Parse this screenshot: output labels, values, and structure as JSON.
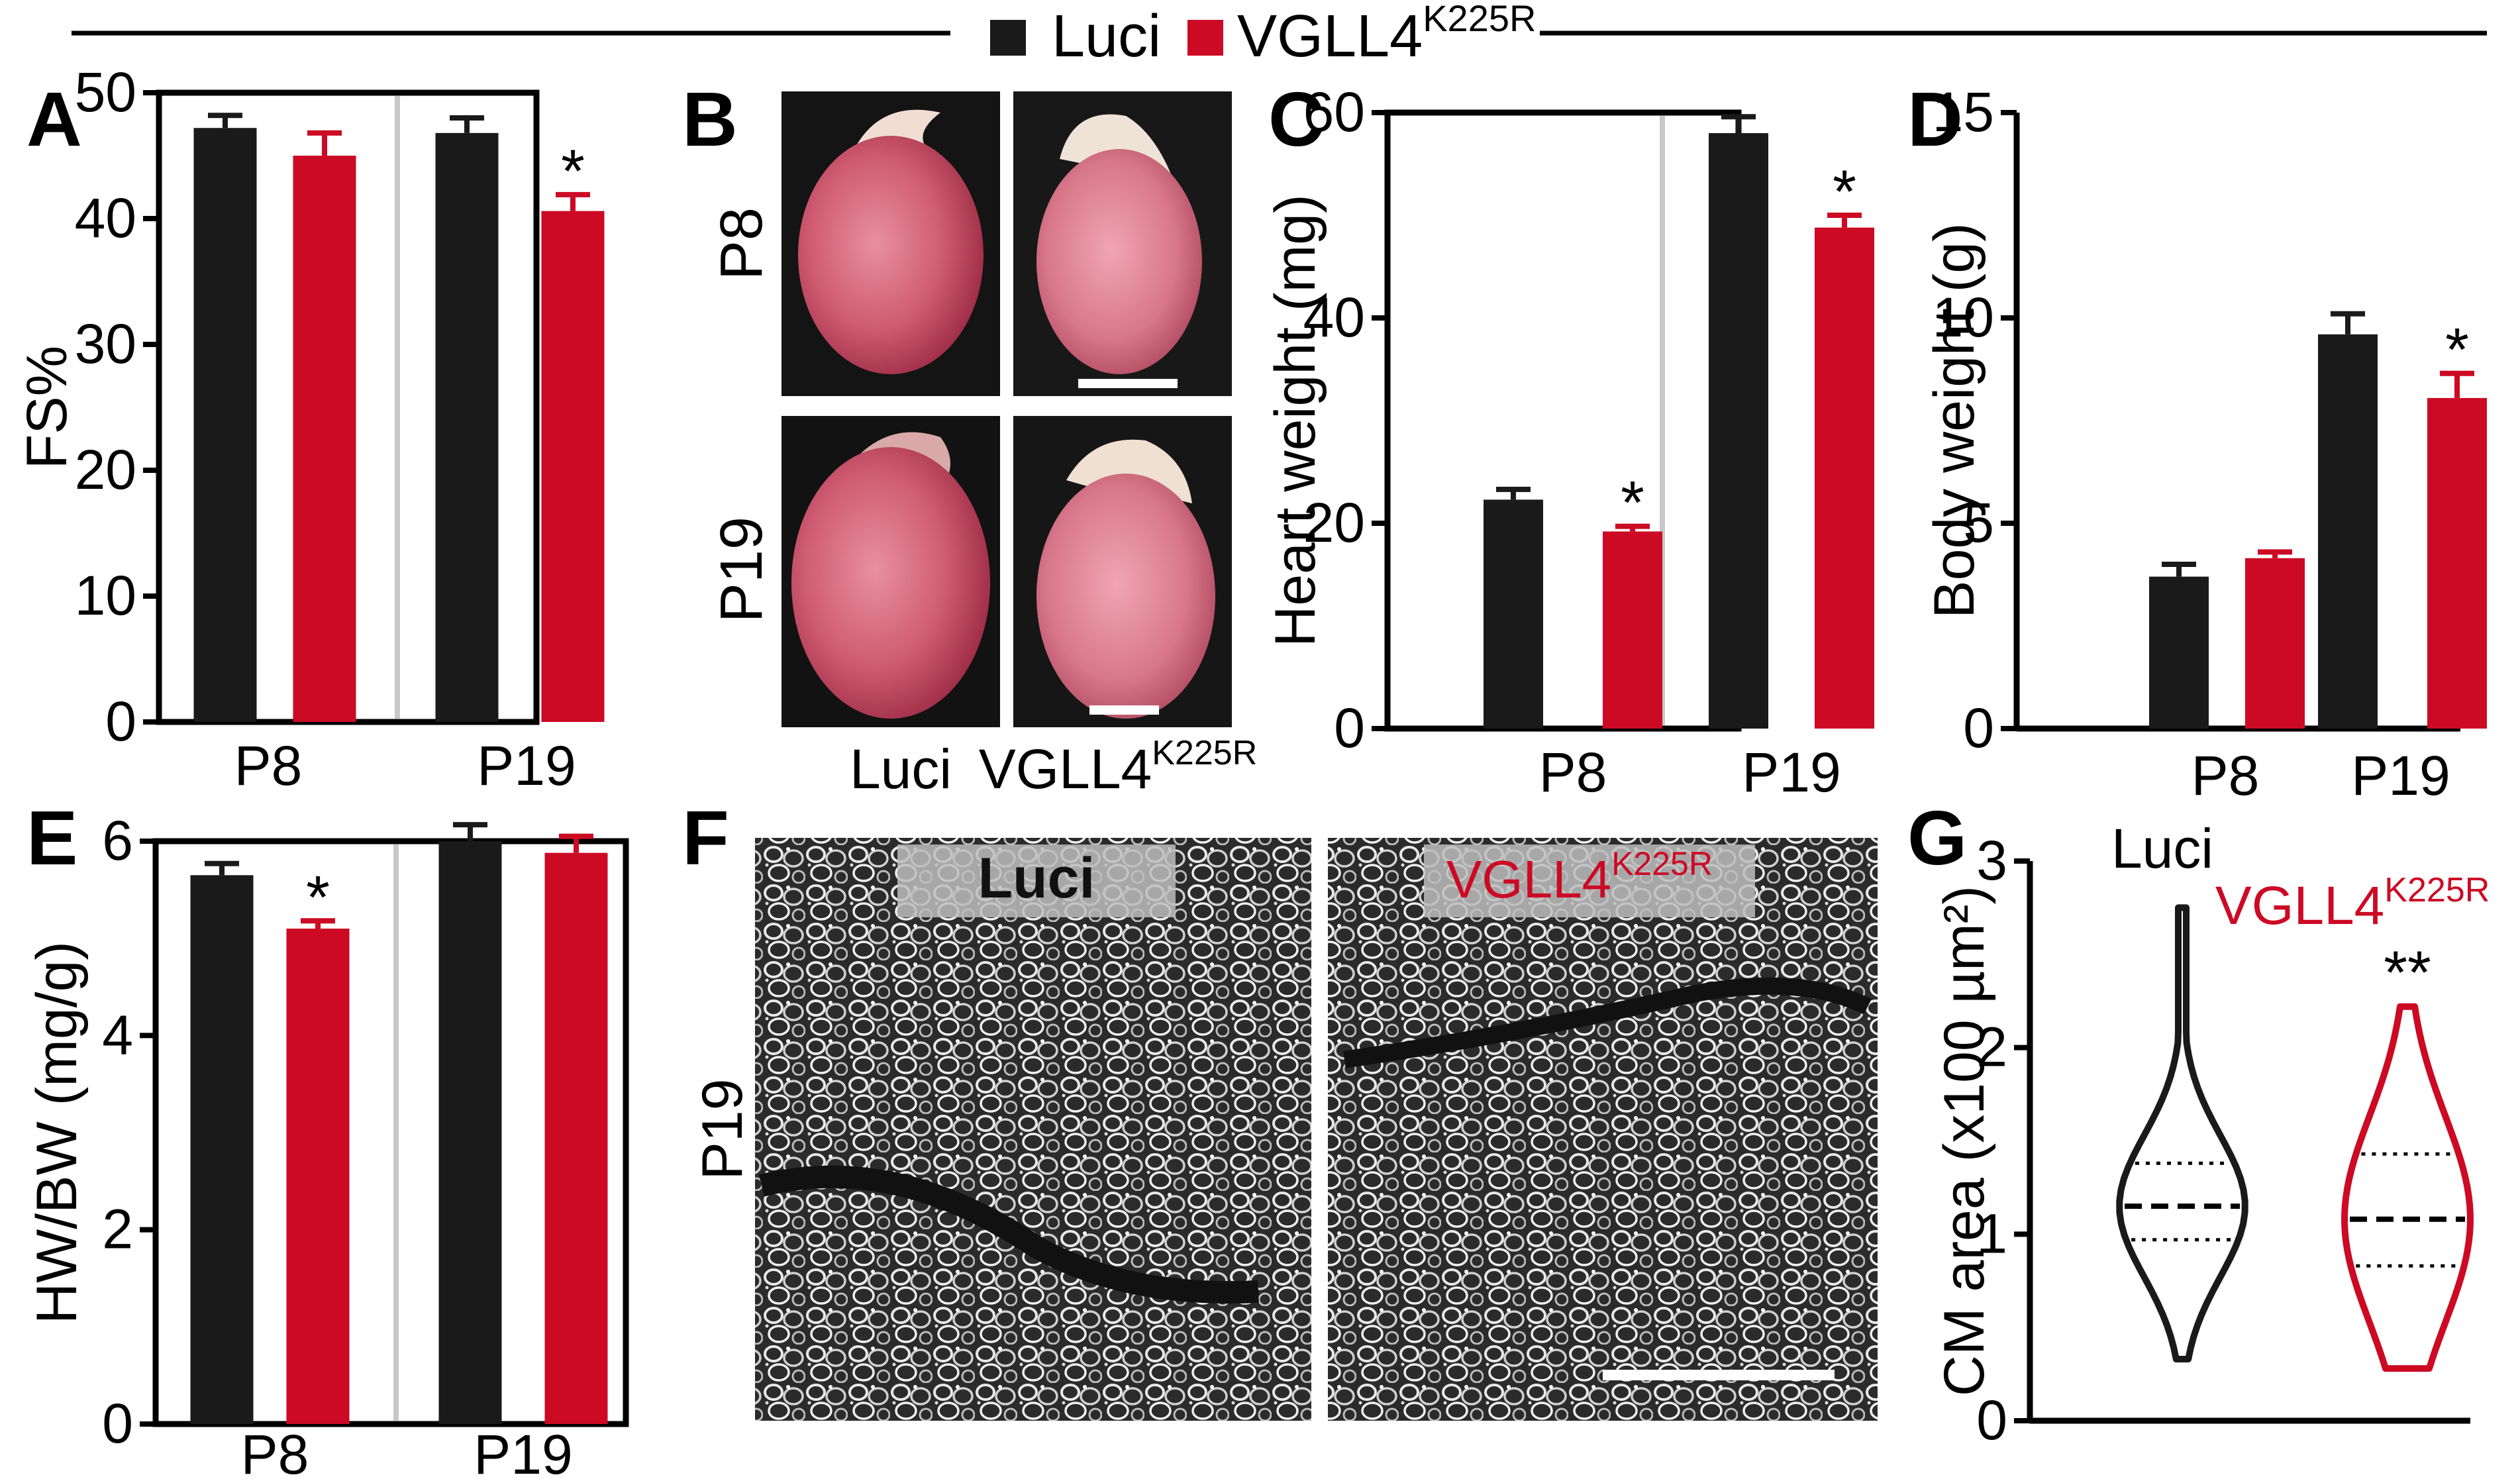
{
  "legend": {
    "items": [
      {
        "label": "Luci",
        "sup": "",
        "color": "#1a1a1a"
      },
      {
        "label": "VGLL4",
        "sup": "K225R",
        "color": "#cc0a24"
      }
    ]
  },
  "colors": {
    "luci": "#1a1a1a",
    "mutant": "#cc0a24",
    "divider": "#c8c8c8"
  },
  "panels": {
    "A": {
      "letter": "A"
    },
    "B": {
      "letter": "B",
      "rows": [
        "P8",
        "P19"
      ],
      "cols": [
        "Luci",
        "VGLL4"
      ],
      "col_sup": "K225R"
    },
    "C": {
      "letter": "C"
    },
    "D": {
      "letter": "D"
    },
    "E": {
      "letter": "E"
    },
    "F": {
      "letter": "F",
      "row": "P19",
      "labels": [
        "Luci",
        "VGLL4"
      ],
      "label_sup": "K225R"
    },
    "G": {
      "letter": "G"
    }
  },
  "chart_data": [
    {
      "panel": "A",
      "type": "bar",
      "categories": [
        "P8",
        "P19"
      ],
      "ylabel": "FS%",
      "ylim": [
        0,
        50
      ],
      "yticks": [
        0,
        10,
        20,
        30,
        40,
        50
      ],
      "series": [
        {
          "name": "Luci",
          "values": [
            47.2,
            46.8
          ],
          "errors": [
            1.0,
            1.2
          ]
        },
        {
          "name": "VGLL4K225R",
          "values": [
            45.0,
            40.6
          ],
          "errors": [
            1.8,
            1.3
          ]
        }
      ],
      "annotations": [
        {
          "category": "P19",
          "series": 1,
          "text": "*"
        }
      ],
      "divider": true
    },
    {
      "panel": "C",
      "type": "bar",
      "categories": [
        "P8",
        "P19"
      ],
      "ylabel": "Heart weight (mg)",
      "ylim": [
        0,
        60
      ],
      "yticks": [
        0,
        20,
        40,
        60
      ],
      "series": [
        {
          "name": "Luci",
          "values": [
            22.3,
            58.0
          ],
          "errors": [
            1.0,
            1.6
          ]
        },
        {
          "name": "VGLL4K225R",
          "values": [
            19.2,
            48.8
          ],
          "errors": [
            0.5,
            1.2
          ]
        }
      ],
      "annotations": [
        {
          "category": "P8",
          "series": 1,
          "text": "*"
        },
        {
          "category": "P19",
          "series": 1,
          "text": "*"
        }
      ],
      "divider": true
    },
    {
      "panel": "D",
      "type": "bar",
      "categories": [
        "P8",
        "P19"
      ],
      "ylabel": "Body weight (g)",
      "ylim": [
        0,
        15
      ],
      "yticks": [
        0,
        5,
        10,
        15
      ],
      "series": [
        {
          "name": "Luci",
          "values": [
            3.7,
            9.6
          ],
          "errors": [
            0.3,
            0.5
          ]
        },
        {
          "name": "VGLL4K225R",
          "values": [
            4.15,
            8.05
          ],
          "errors": [
            0.15,
            0.6
          ]
        }
      ],
      "annotations": [
        {
          "category": "P19",
          "series": 1,
          "text": "*"
        }
      ],
      "divider": false
    },
    {
      "panel": "E",
      "type": "bar",
      "categories": [
        "P8",
        "P19"
      ],
      "ylabel": "HW/BW (mg/g)",
      "ylim": [
        0,
        6
      ],
      "yticks": [
        0,
        2,
        4,
        6
      ],
      "series": [
        {
          "name": "Luci",
          "values": [
            5.65,
            6.0
          ],
          "errors": [
            0.12,
            0.17
          ]
        },
        {
          "name": "VGLL4K225R",
          "values": [
            5.1,
            5.88
          ],
          "errors": [
            0.08,
            0.17
          ]
        }
      ],
      "annotations": [
        {
          "category": "P8",
          "series": 1,
          "text": "*"
        }
      ],
      "divider": true
    },
    {
      "panel": "G",
      "type": "violin",
      "ylabel": "CM area (x100 µm²)",
      "ylim": [
        0,
        3
      ],
      "yticks": [
        0,
        1,
        2,
        3
      ],
      "series": [
        {
          "name": "Luci",
          "min": 0.33,
          "max": 2.75,
          "q1": 0.97,
          "median": 1.15,
          "q3": 1.38
        },
        {
          "name": "VGLL4K225R",
          "min": 0.28,
          "max": 2.22,
          "q1": 0.83,
          "median": 1.08,
          "q3": 1.43
        }
      ],
      "annotations": [
        {
          "series": 1,
          "text": "**"
        }
      ]
    }
  ]
}
